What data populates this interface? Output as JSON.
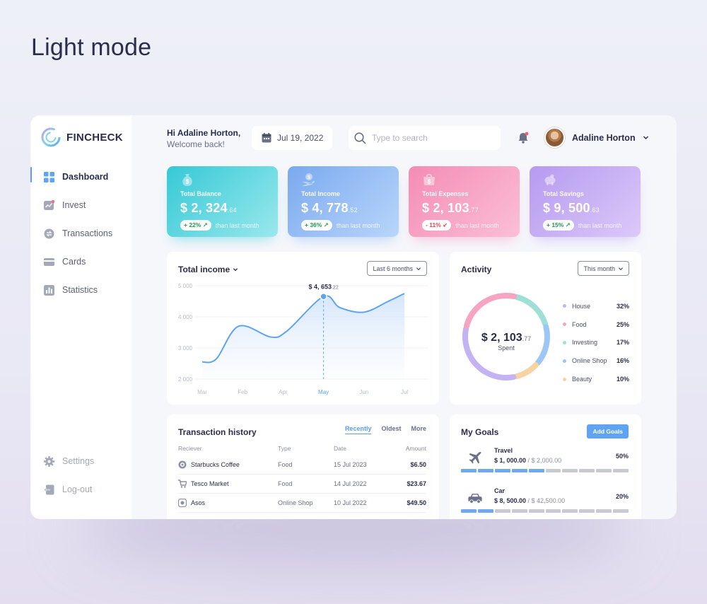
{
  "page_heading": "Light mode",
  "brand": {
    "name": "FINCHECK"
  },
  "nav": {
    "items": [
      {
        "label": "Dashboard",
        "icon": "grid-icon",
        "active": true
      },
      {
        "label": "Invest",
        "icon": "invest-icon",
        "active": false
      },
      {
        "label": "Transactions",
        "icon": "transactions-icon",
        "active": false
      },
      {
        "label": "Cards",
        "icon": "card-icon",
        "active": false
      },
      {
        "label": "Statistics",
        "icon": "statistics-icon",
        "active": false
      }
    ],
    "bottom": [
      {
        "label": "Settings",
        "icon": "gear-icon"
      },
      {
        "label": "Log-out",
        "icon": "logout-icon"
      }
    ]
  },
  "header": {
    "greeting_line1": "Hi Adaline Horton,",
    "greeting_line2": "Welcome back!",
    "date": "Jul 19, 2022",
    "search_placeholder": "Type to search",
    "user_name": "Adaline Horton"
  },
  "stats": [
    {
      "label": "Total Balance",
      "value": "$ 2, 324",
      "cents": ".64",
      "change": "+ 22%",
      "dir": "up",
      "note": "than last month",
      "color_from": "#35c9d6",
      "color_to": "#9ae8ec",
      "icon": "money-bag-icon"
    },
    {
      "label": "Total Income",
      "value": "$ 4, 778",
      "cents": ".52",
      "change": "+ 36%",
      "dir": "up",
      "note": "than last month",
      "color_from": "#7aa9ef",
      "color_to": "#b9d6fb",
      "icon": "hand-coin-icon"
    },
    {
      "label": "Total Expenses",
      "value": "$ 2, 103",
      "cents": ".77",
      "change": "- 11%",
      "dir": "down",
      "note": "than last month",
      "color_from": "#f48cb5",
      "color_to": "#fbbfd6",
      "icon": "shopping-bag-icon"
    },
    {
      "label": "Total Savings",
      "value": "$ 9, 500",
      "cents": ".63",
      "change": "+ 15%",
      "dir": "up",
      "note": "than last month",
      "color_from": "#b69af0",
      "color_to": "#dcc9f9",
      "icon": "piggy-bank-icon"
    }
  ],
  "income": {
    "title": "Total income",
    "range": "Last 6 months",
    "tooltip_value": "$ 4, 653",
    "tooltip_cents": ".22"
  },
  "chart_data": {
    "type": "line",
    "x": [
      "Mar",
      "Feb",
      "Apr",
      "May",
      "Jun",
      "Jul"
    ],
    "highlight_x": "May",
    "y_ticks": [
      "5 000",
      "4 000",
      "3 000",
      "2 000"
    ],
    "ylim": [
      2000,
      5000
    ],
    "points": [
      [
        0,
        2550
      ],
      [
        0.35,
        2650
      ],
      [
        0.9,
        3700
      ],
      [
        1.7,
        3350
      ],
      [
        2.1,
        3550
      ],
      [
        3.0,
        4653
      ],
      [
        3.4,
        4300
      ],
      [
        4.0,
        4150
      ],
      [
        4.6,
        4500
      ],
      [
        5.0,
        4750
      ]
    ],
    "color": "#5ea4f3"
  },
  "activity": {
    "title": "Activity",
    "range": "This month",
    "center_value": "$ 2, 103",
    "center_cents": ".77",
    "center_label": "Spent",
    "categories": [
      {
        "name": "House",
        "pct": "32%",
        "value": 32,
        "color": "#c4b3f2"
      },
      {
        "name": "Food",
        "pct": "25%",
        "value": 25,
        "color": "#f7a4c2"
      },
      {
        "name": "Investing",
        "pct": "17%",
        "value": 17,
        "color": "#9fe0d6"
      },
      {
        "name": "Online Shop",
        "pct": "16%",
        "value": 16,
        "color": "#9cc6f6"
      },
      {
        "name": "Beauty",
        "pct": "10%",
        "value": 10,
        "color": "#f8d2a2"
      }
    ]
  },
  "transactions": {
    "title": "Transaction history",
    "tabs": [
      "Recently",
      "Oldest",
      "More"
    ],
    "headers": {
      "receiver": "Reciever",
      "type": "Type",
      "date": "Date",
      "amount": "Amount"
    },
    "rows": [
      {
        "receiver": "Starbucks Coffee",
        "type": "Food",
        "date": "15 Jul 2023",
        "amount": "$6.50",
        "icon": "starbucks-icon"
      },
      {
        "receiver": "Tesco Market",
        "type": "Food",
        "date": "14 Jul 2022",
        "amount": "$23.67",
        "icon": "cart-icon"
      },
      {
        "receiver": "Asos",
        "type": "Online Shop",
        "date": "10 Jul 2022",
        "amount": "$49.50",
        "icon": "asos-icon"
      }
    ]
  },
  "goals": {
    "title": "My Goals",
    "add_label": "Add Goals",
    "items": [
      {
        "name": "Travel",
        "saved": "$ 1, 000.00",
        "target": " / $ 2,000.00",
        "pct": "50%",
        "progress": 0.5,
        "icon": "plane-icon"
      },
      {
        "name": "Car",
        "saved": "$ 8, 500.00",
        "target": " / $ 42,500.00",
        "pct": "20%",
        "progress": 0.2,
        "icon": "car-icon"
      }
    ]
  }
}
